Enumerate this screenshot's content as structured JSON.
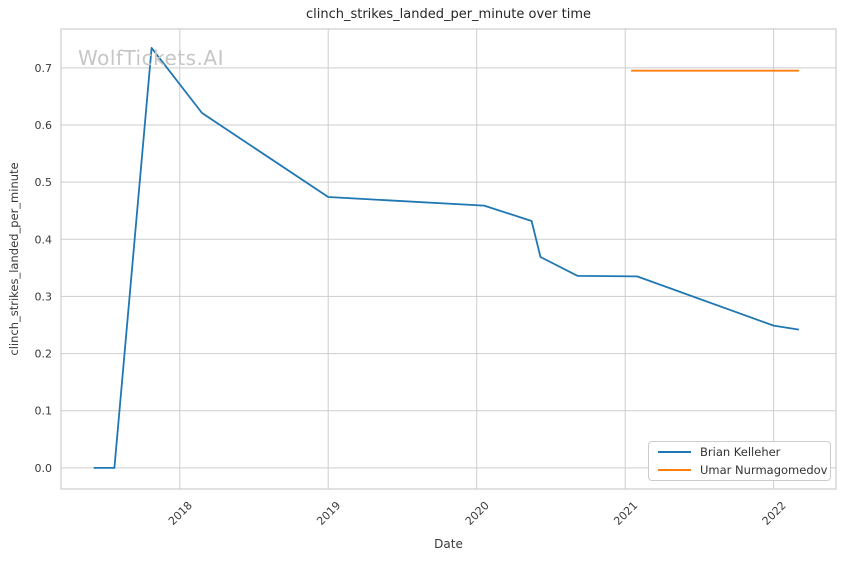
{
  "watermark": {
    "text": "WolfTickets.AI",
    "color": "#c6c6c6"
  },
  "chart_data": {
    "type": "line",
    "title": "clinch_strikes_landed_per_minute over time",
    "xlabel": "Date",
    "ylabel": "clinch_strikes_landed_per_minute",
    "xlim": [
      2017.2,
      2022.42
    ],
    "ylim": [
      -0.037,
      0.768
    ],
    "grid": true,
    "grid_color": "#cdcdcd",
    "tick_color": "#3a3a3a",
    "legend_position": "lower right",
    "x_ticks": [
      {
        "value": 2018,
        "label": "2018"
      },
      {
        "value": 2019,
        "label": "2019"
      },
      {
        "value": 2020,
        "label": "2020"
      },
      {
        "value": 2021,
        "label": "2021"
      },
      {
        "value": 2022,
        "label": "2022"
      }
    ],
    "y_ticks": [
      {
        "value": 0.0,
        "label": "0.0"
      },
      {
        "value": 0.1,
        "label": "0.1"
      },
      {
        "value": 0.2,
        "label": "0.2"
      },
      {
        "value": 0.3,
        "label": "0.3"
      },
      {
        "value": 0.4,
        "label": "0.4"
      },
      {
        "value": 0.5,
        "label": "0.5"
      },
      {
        "value": 0.6,
        "label": "0.6"
      },
      {
        "value": 0.7,
        "label": "0.7"
      }
    ],
    "series": [
      {
        "name": "Brian Kelleher",
        "color": "#1f77b4",
        "points": [
          [
            2017.42,
            0.0
          ],
          [
            2017.56,
            0.0
          ],
          [
            2017.81,
            0.735
          ],
          [
            2018.15,
            0.621
          ],
          [
            2019.0,
            0.474
          ],
          [
            2020.05,
            0.459
          ],
          [
            2020.37,
            0.432
          ],
          [
            2020.43,
            0.369
          ],
          [
            2020.68,
            0.336
          ],
          [
            2021.08,
            0.335
          ],
          [
            2022.0,
            0.249
          ],
          [
            2022.17,
            0.242
          ]
        ]
      },
      {
        "name": "Umar Nurmagomedov",
        "color": "#ff7f0e",
        "points": [
          [
            2021.04,
            0.695
          ],
          [
            2022.17,
            0.695
          ]
        ]
      }
    ]
  }
}
